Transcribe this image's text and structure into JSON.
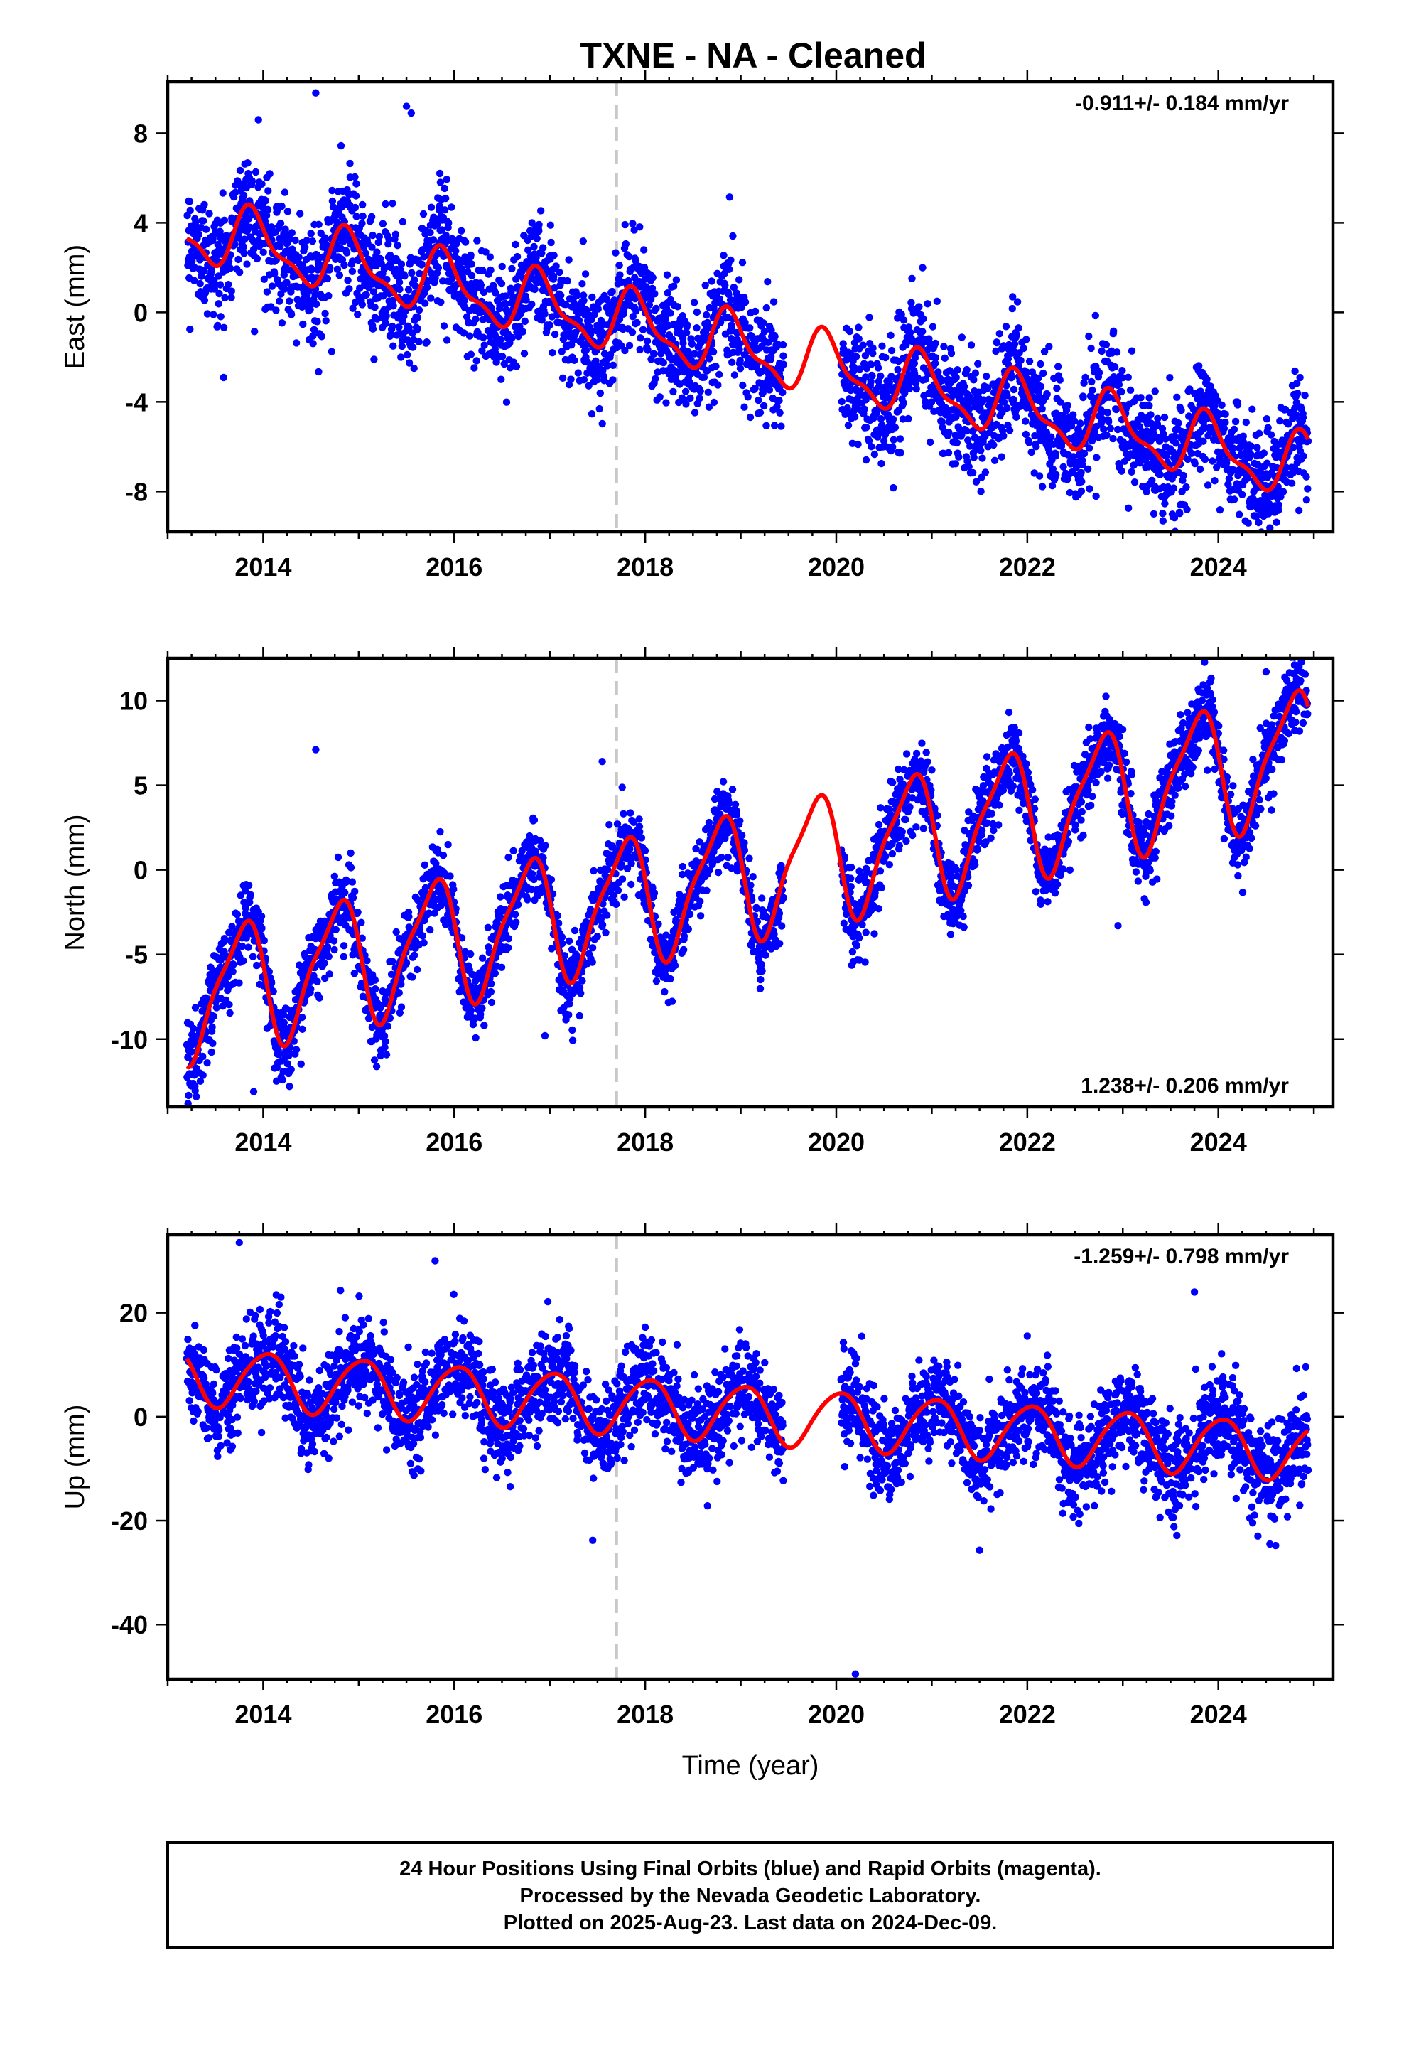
{
  "title": "TXNE  - NA - Cleaned",
  "footer": {
    "line1": "24 Hour Positions Using Final Orbits (blue) and Rapid Orbits (magenta).",
    "line2": "Processed by the Nevada Geodetic Laboratory.",
    "line3": "Plotted on 2025-Aug-23. Last data on 2024-Dec-09."
  },
  "colors": {
    "points": "#0000ff",
    "model": "#ff0000",
    "event_line": "#c8c8c8",
    "frame": "#000000"
  },
  "chart_data": [
    {
      "type": "scatter",
      "ylabel": "East (mm)",
      "xlabel": "",
      "rate_label": "-0.911+/- 0.184 mm/yr",
      "rate_position": "top-right",
      "xlim": [
        2013.0,
        2025.2
      ],
      "ylim": [
        -9.8,
        10.3
      ],
      "x_ticks": [
        2014,
        2016,
        2018,
        2020,
        2022,
        2024
      ],
      "y_ticks": [
        8,
        4,
        0,
        -4,
        -8
      ],
      "data_start": 2013.2,
      "data_end": 2024.94,
      "gap": [
        2019.45,
        2020.05
      ],
      "trend": {
        "intercept_at_start": 3.7,
        "slope": -0.911
      },
      "seasonal": {
        "annual_amplitude": 1.3,
        "annual_phase": 0.65,
        "semiannual_amplitude": 0.5,
        "semiannual_phase": 0.2
      },
      "scatter_sd": 1.3,
      "extra_points": [
        [
          2013.95,
          8.6
        ],
        [
          2014.55,
          9.8
        ],
        [
          2015.5,
          9.2
        ],
        [
          2015.55,
          8.9
        ],
        [
          2024.4,
          -9.1
        ],
        [
          2023.25,
          -7.8
        ],
        [
          2020.2,
          -4.2
        ]
      ]
    },
    {
      "type": "scatter",
      "ylabel": "North (mm)",
      "xlabel": "",
      "rate_label": "1.238+/- 0.206 mm/yr",
      "rate_position": "bottom-right",
      "xlim": [
        2013.0,
        2025.2
      ],
      "ylim": [
        -14.0,
        12.5
      ],
      "x_ticks": [
        2014,
        2016,
        2018,
        2020,
        2022,
        2024
      ],
      "y_ticks": [
        10,
        5,
        0,
        -5,
        -10
      ],
      "data_start": 2013.2,
      "data_end": 2024.94,
      "gap": [
        2019.45,
        2020.05
      ],
      "trend": {
        "intercept_at_start": -7.5,
        "slope": 1.238
      },
      "seasonal": {
        "annual_amplitude": 3.6,
        "annual_phase": 0.52,
        "semiannual_amplitude": 0.9,
        "semiannual_phase": 0.3
      },
      "scatter_sd": 1.1,
      "extra_points": [
        [
          2014.55,
          7.1
        ],
        [
          2013.3,
          -13.4
        ],
        [
          2013.9,
          -13.1
        ],
        [
          2016.95,
          -9.8
        ],
        [
          2017.55,
          6.4
        ],
        [
          2024.5,
          11.7
        ],
        [
          2022.95,
          -3.3
        ]
      ]
    },
    {
      "type": "scatter",
      "ylabel": "Up (mm)",
      "xlabel": "Time (year)",
      "rate_label": "-1.259+/- 0.798 mm/yr",
      "rate_position": "top-right",
      "xlim": [
        2013.0,
        2025.2
      ],
      "ylim": [
        -50.5,
        35.0
      ],
      "x_ticks": [
        2014,
        2016,
        2018,
        2020,
        2022,
        2024
      ],
      "y_ticks": [
        20,
        0,
        -20,
        -40
      ],
      "data_start": 2013.2,
      "data_end": 2024.94,
      "gap": [
        2019.45,
        2020.05
      ],
      "trend": {
        "intercept_at_start": 8.0,
        "slope": -1.259
      },
      "seasonal": {
        "annual_amplitude": 5.5,
        "annual_phase": 0.78,
        "semiannual_amplitude": 0.6,
        "semiannual_phase": 0.1
      },
      "scatter_sd": 4.5,
      "extra_points": [
        [
          2013.75,
          33.5
        ],
        [
          2015.8,
          30.0
        ],
        [
          2023.75,
          24.0
        ],
        [
          2020.2,
          -49.5
        ],
        [
          2017.45,
          -23.8
        ],
        [
          2021.5,
          -25.7
        ],
        [
          2024.6,
          -24.8
        ]
      ]
    }
  ],
  "event_line_x": 2017.7
}
